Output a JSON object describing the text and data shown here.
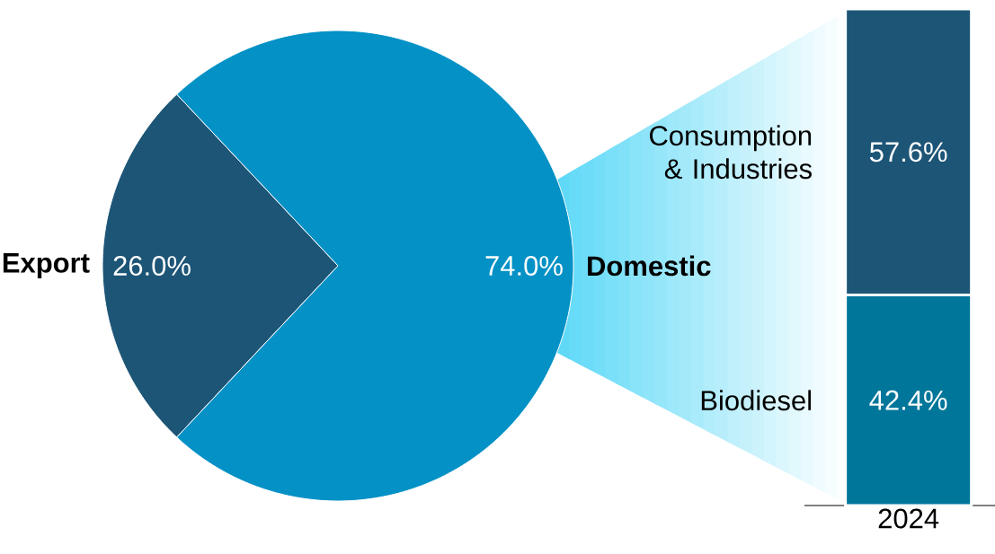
{
  "chart_data": [
    {
      "type": "pie",
      "categories": [
        "Export",
        "Domestic"
      ],
      "values": [
        26.0,
        74.0
      ],
      "colors": [
        "#1d5577",
        "#0391c6"
      ],
      "value_labels": [
        "26.0%",
        "74.0%"
      ]
    },
    {
      "type": "bar",
      "stacked": true,
      "categories": [
        "2024"
      ],
      "series": [
        {
          "name": "Biodiesel",
          "color": "#00769a",
          "values": [
            42.4
          ],
          "value_labels": [
            "42.4%"
          ]
        },
        {
          "name": "Consumption & Industries",
          "color": "#1d5577",
          "values": [
            57.6
          ],
          "value_labels": [
            "57.6%"
          ]
        }
      ]
    }
  ]
}
